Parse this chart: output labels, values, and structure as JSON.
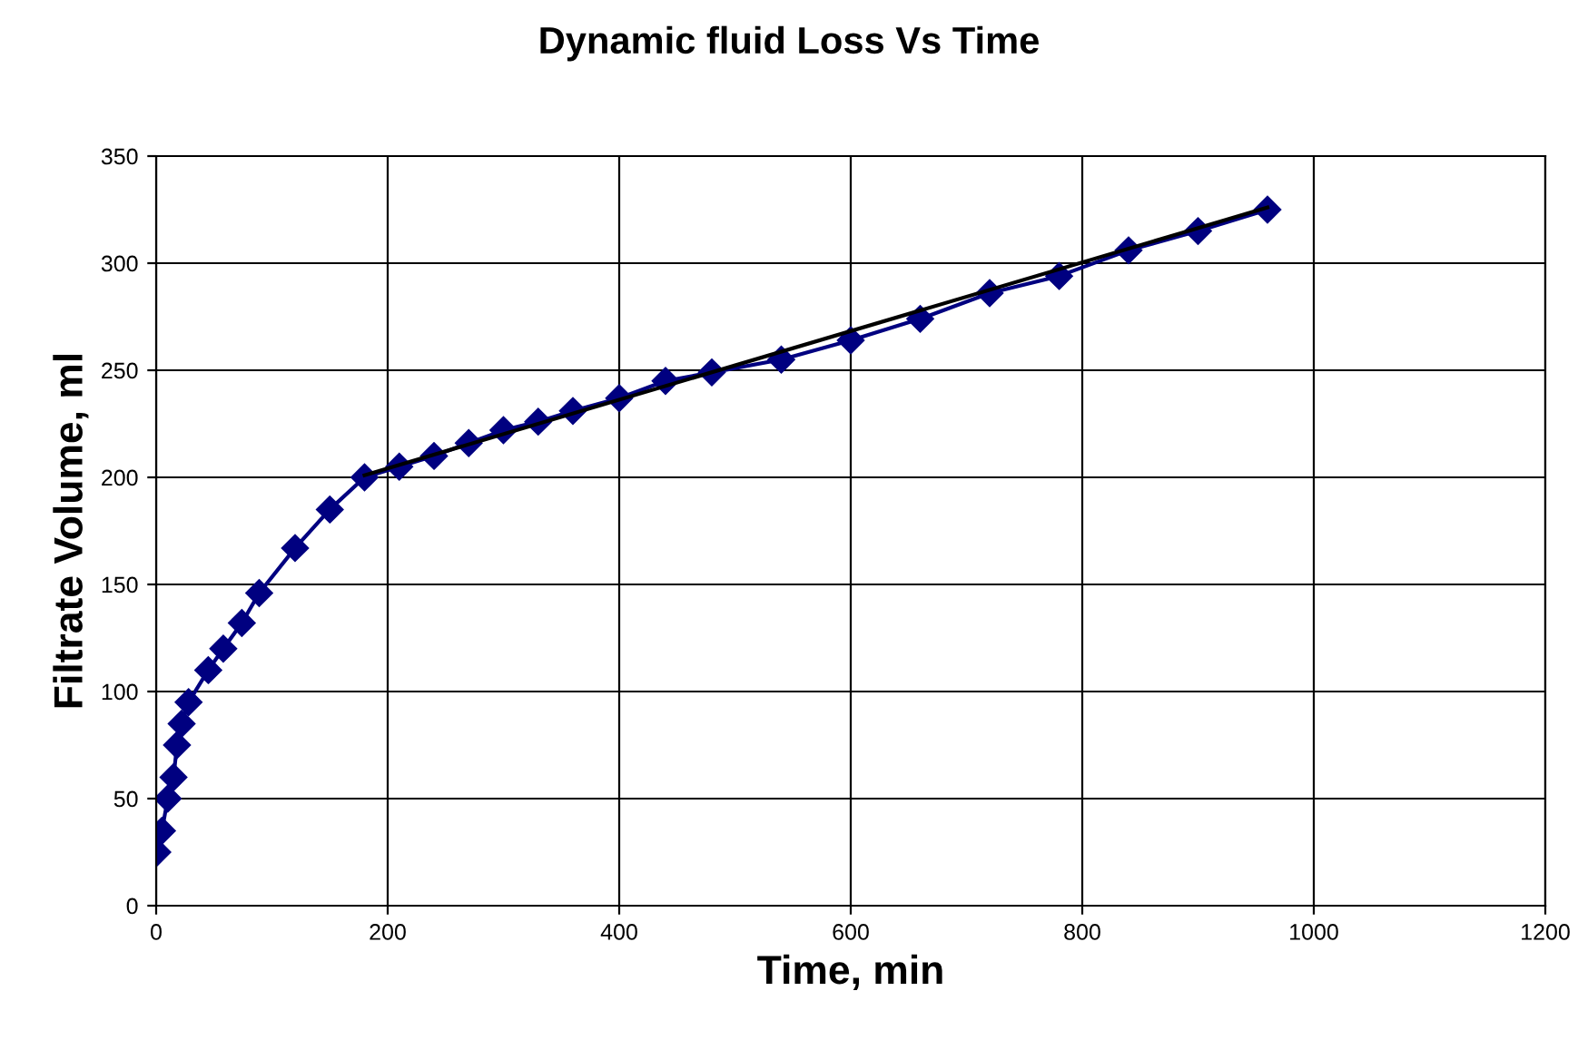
{
  "chart_data": {
    "type": "line",
    "title": "Dynamic fluid Loss Vs Time",
    "xlabel": "Time, min",
    "ylabel": "Filtrate Volume, ml",
    "xlim": [
      0,
      1200
    ],
    "xticks": [
      0,
      200,
      400,
      600,
      800,
      1000,
      1200
    ],
    "ylim": [
      0,
      350
    ],
    "yticks": [
      0,
      50,
      100,
      150,
      200,
      250,
      300,
      350
    ],
    "grid": true,
    "legend": false,
    "series": [
      {
        "color": "#000080",
        "marker": "diamond",
        "x": [
          1,
          5,
          10,
          15,
          18,
          22,
          28,
          45,
          58,
          74,
          89,
          120,
          150,
          180,
          210,
          240,
          270,
          300,
          330,
          360,
          400,
          440,
          480,
          540,
          600,
          660,
          720,
          780,
          840,
          900,
          960
        ],
        "values": [
          25,
          35,
          50,
          60,
          75,
          85,
          95,
          110,
          120,
          132,
          146,
          167,
          185,
          200,
          205,
          210,
          216,
          222,
          226,
          231,
          237,
          245,
          249,
          255,
          264,
          274,
          286,
          294,
          306,
          315,
          325
        ]
      },
      {
        "color": "#000000",
        "marker": "none",
        "x": [
          180,
          960
        ],
        "values": [
          201,
          326
        ]
      }
    ]
  }
}
